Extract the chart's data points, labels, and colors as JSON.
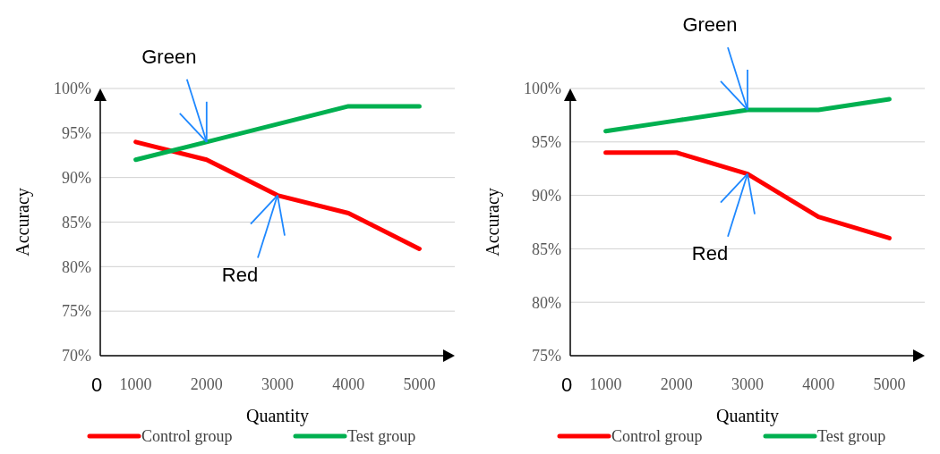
{
  "chart_data": [
    {
      "type": "line",
      "xlabel": "Quantity",
      "ylabel": "Accuracy",
      "categories": [
        "1000",
        "2000",
        "3000",
        "4000",
        "5000"
      ],
      "ylim": [
        70,
        100
      ],
      "yticks": [
        {
          "value": 70,
          "label": "70%"
        },
        {
          "value": 75,
          "label": "75%"
        },
        {
          "value": 80,
          "label": "80%"
        },
        {
          "value": 85,
          "label": "85%"
        },
        {
          "value": 90,
          "label": "90%"
        },
        {
          "value": 95,
          "label": "95%"
        },
        {
          "value": 100,
          "label": "100%"
        }
      ],
      "grid": "y",
      "legend": "bottom",
      "marker": "none",
      "line_style": "solid",
      "series": [
        {
          "name": "Control group",
          "color": "#ff0000",
          "values": [
            94,
            92,
            88,
            86,
            82
          ]
        },
        {
          "name": "Test group",
          "color": "#00b050",
          "values": [
            92,
            94,
            96,
            98,
            98
          ]
        }
      ],
      "annotations": [
        "0",
        {
          "text": "Green",
          "x": "2000",
          "y": 94
        },
        {
          "text": "Red",
          "x": "3000",
          "y": 88
        }
      ]
    },
    {
      "type": "line",
      "xlabel": "Quantity",
      "ylabel": "Accuracy",
      "categories": [
        "1000",
        "2000",
        "3000",
        "4000",
        "5000"
      ],
      "ylim": [
        75,
        100
      ],
      "yticks": [
        {
          "value": 75,
          "label": "75%"
        },
        {
          "value": 80,
          "label": "80%"
        },
        {
          "value": 85,
          "label": "85%"
        },
        {
          "value": 90,
          "label": "90%"
        },
        {
          "value": 95,
          "label": "95%"
        },
        {
          "value": 100,
          "label": "100%"
        }
      ],
      "grid": "y",
      "legend": "bottom",
      "marker": "none",
      "line_style": "solid",
      "series": [
        {
          "name": "Control group",
          "color": "#ff0000",
          "values": [
            94,
            94,
            92,
            88,
            86
          ]
        },
        {
          "name": "Test group",
          "color": "#00b050",
          "values": [
            96,
            97,
            98,
            98,
            99
          ]
        }
      ],
      "annotations": [
        "0",
        {
          "text": "Green",
          "x": "3000",
          "y": 98
        },
        {
          "text": "Red",
          "x": "3000",
          "y": 92
        }
      ]
    }
  ]
}
